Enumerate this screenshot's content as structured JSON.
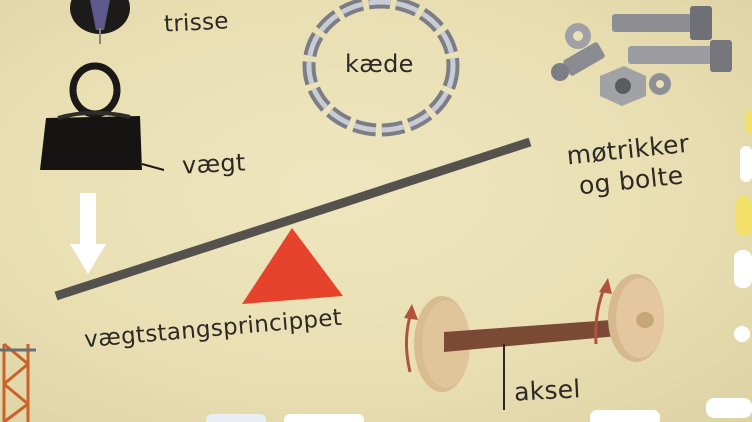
{
  "labels": {
    "pulley": "trisse",
    "chain": "kæde",
    "weight": "vægt",
    "nuts_bolts_line1": "møtrikker",
    "nuts_bolts_line2": "og bolte",
    "lever_principle": "vægtstangsprincippet",
    "axle": "aksel"
  },
  "colors": {
    "background": "#ebe1b6",
    "fulcrum": "#e5432b",
    "lever_bar": "#55524d",
    "wheel": "#d7b98f",
    "axle_rod": "#7a4a35",
    "arrow": "#ffffff"
  },
  "icons": [
    "pulley-icon",
    "weight-icon",
    "chain-icon",
    "nuts-bolts-icon",
    "down-arrow-icon",
    "fulcrum-icon",
    "axle-icon",
    "crane-icon"
  ]
}
